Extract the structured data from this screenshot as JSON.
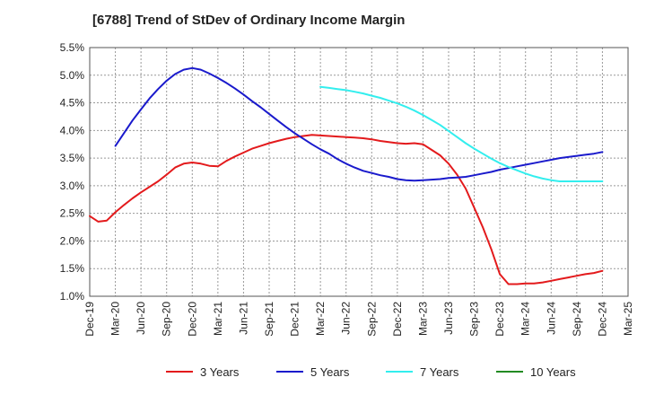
{
  "chart_data": {
    "type": "line",
    "title": "[6788]  Trend of StDev of Ordinary Income Margin",
    "xlabel": "",
    "ylabel": "",
    "x_tick_labels": [
      "Dec-19",
      "Mar-20",
      "Jun-20",
      "Sep-20",
      "Dec-20",
      "Mar-21",
      "Jun-21",
      "Sep-21",
      "Dec-21",
      "Mar-22",
      "Jun-22",
      "Sep-22",
      "Dec-22",
      "Mar-23",
      "Jun-23",
      "Sep-23",
      "Dec-23",
      "Mar-24",
      "Jun-24",
      "Sep-24",
      "Dec-24",
      "Mar-25"
    ],
    "y_tick_labels": [
      "1.0%",
      "1.5%",
      "2.0%",
      "2.5%",
      "3.0%",
      "3.5%",
      "4.0%",
      "4.5%",
      "5.0%",
      "5.5%"
    ],
    "ylim": [
      1.0,
      5.5
    ],
    "y_ticks": [
      1.0,
      1.5,
      2.0,
      2.5,
      3.0,
      3.5,
      4.0,
      4.5,
      5.0,
      5.5
    ],
    "grid": true,
    "legend_position": "bottom",
    "series": [
      {
        "name": "3 Years",
        "color": "#e31a1c",
        "points": [
          [
            "2019-12",
            2.45
          ],
          [
            "2020-01",
            2.35
          ],
          [
            "2020-02",
            2.37
          ],
          [
            "2020-03",
            2.52
          ],
          [
            "2020-04",
            2.65
          ],
          [
            "2020-05",
            2.77
          ],
          [
            "2020-06",
            2.88
          ],
          [
            "2020-07",
            2.98
          ],
          [
            "2020-08",
            3.08
          ],
          [
            "2020-09",
            3.2
          ],
          [
            "2020-10",
            3.33
          ],
          [
            "2020-11",
            3.4
          ],
          [
            "2020-12",
            3.42
          ],
          [
            "2021-01",
            3.4
          ],
          [
            "2021-02",
            3.36
          ],
          [
            "2021-03",
            3.35
          ],
          [
            "2021-04",
            3.45
          ],
          [
            "2021-05",
            3.53
          ],
          [
            "2021-06",
            3.6
          ],
          [
            "2021-07",
            3.67
          ],
          [
            "2021-08",
            3.72
          ],
          [
            "2021-09",
            3.77
          ],
          [
            "2021-10",
            3.81
          ],
          [
            "2021-11",
            3.85
          ],
          [
            "2021-12",
            3.88
          ],
          [
            "2022-01",
            3.9
          ],
          [
            "2022-02",
            3.92
          ],
          [
            "2022-03",
            3.91
          ],
          [
            "2022-04",
            3.9
          ],
          [
            "2022-05",
            3.89
          ],
          [
            "2022-06",
            3.88
          ],
          [
            "2022-07",
            3.87
          ],
          [
            "2022-08",
            3.86
          ],
          [
            "2022-09",
            3.84
          ],
          [
            "2022-10",
            3.81
          ],
          [
            "2022-11",
            3.79
          ],
          [
            "2022-12",
            3.77
          ],
          [
            "2023-01",
            3.76
          ],
          [
            "2023-02",
            3.77
          ],
          [
            "2023-03",
            3.75
          ],
          [
            "2023-04",
            3.65
          ],
          [
            "2023-05",
            3.55
          ],
          [
            "2023-06",
            3.4
          ],
          [
            "2023-07",
            3.2
          ],
          [
            "2023-08",
            2.95
          ],
          [
            "2023-09",
            2.6
          ],
          [
            "2023-10",
            2.25
          ],
          [
            "2023-11",
            1.85
          ],
          [
            "2023-12",
            1.4
          ],
          [
            "2024-01",
            1.22
          ],
          [
            "2024-02",
            1.22
          ],
          [
            "2024-03",
            1.23
          ],
          [
            "2024-04",
            1.23
          ],
          [
            "2024-05",
            1.25
          ],
          [
            "2024-06",
            1.28
          ],
          [
            "2024-07",
            1.31
          ],
          [
            "2024-08",
            1.34
          ],
          [
            "2024-09",
            1.37
          ],
          [
            "2024-10",
            1.4
          ],
          [
            "2024-11",
            1.42
          ],
          [
            "2024-12",
            1.46
          ]
        ]
      },
      {
        "name": "5 Years",
        "color": "#1a1acc",
        "points": [
          [
            "2020-03",
            3.72
          ],
          [
            "2020-04",
            3.95
          ],
          [
            "2020-05",
            4.18
          ],
          [
            "2020-06",
            4.38
          ],
          [
            "2020-07",
            4.58
          ],
          [
            "2020-08",
            4.75
          ],
          [
            "2020-09",
            4.9
          ],
          [
            "2020-10",
            5.02
          ],
          [
            "2020-11",
            5.1
          ],
          [
            "2020-12",
            5.13
          ],
          [
            "2021-01",
            5.1
          ],
          [
            "2021-02",
            5.03
          ],
          [
            "2021-03",
            4.95
          ],
          [
            "2021-04",
            4.86
          ],
          [
            "2021-05",
            4.76
          ],
          [
            "2021-06",
            4.65
          ],
          [
            "2021-07",
            4.53
          ],
          [
            "2021-08",
            4.42
          ],
          [
            "2021-09",
            4.3
          ],
          [
            "2021-10",
            4.18
          ],
          [
            "2021-11",
            4.06
          ],
          [
            "2021-12",
            3.95
          ],
          [
            "2022-01",
            3.85
          ],
          [
            "2022-02",
            3.75
          ],
          [
            "2022-03",
            3.66
          ],
          [
            "2022-04",
            3.58
          ],
          [
            "2022-05",
            3.48
          ],
          [
            "2022-06",
            3.4
          ],
          [
            "2022-07",
            3.33
          ],
          [
            "2022-08",
            3.27
          ],
          [
            "2022-09",
            3.23
          ],
          [
            "2022-10",
            3.19
          ],
          [
            "2022-11",
            3.16
          ],
          [
            "2022-12",
            3.12
          ],
          [
            "2023-01",
            3.1
          ],
          [
            "2023-02",
            3.09
          ],
          [
            "2023-03",
            3.1
          ],
          [
            "2023-04",
            3.11
          ],
          [
            "2023-05",
            3.12
          ],
          [
            "2023-06",
            3.14
          ],
          [
            "2023-07",
            3.15
          ],
          [
            "2023-08",
            3.16
          ],
          [
            "2023-09",
            3.19
          ],
          [
            "2023-10",
            3.22
          ],
          [
            "2023-11",
            3.25
          ],
          [
            "2023-12",
            3.29
          ],
          [
            "2024-01",
            3.32
          ],
          [
            "2024-02",
            3.35
          ],
          [
            "2024-03",
            3.38
          ],
          [
            "2024-04",
            3.41
          ],
          [
            "2024-05",
            3.44
          ],
          [
            "2024-06",
            3.47
          ],
          [
            "2024-07",
            3.5
          ],
          [
            "2024-08",
            3.52
          ],
          [
            "2024-09",
            3.54
          ],
          [
            "2024-10",
            3.56
          ],
          [
            "2024-11",
            3.58
          ],
          [
            "2024-12",
            3.61
          ]
        ]
      },
      {
        "name": "7 Years",
        "color": "#33eeee",
        "points": [
          [
            "2022-03",
            4.79
          ],
          [
            "2022-04",
            4.77
          ],
          [
            "2022-05",
            4.75
          ],
          [
            "2022-06",
            4.73
          ],
          [
            "2022-07",
            4.7
          ],
          [
            "2022-08",
            4.67
          ],
          [
            "2022-09",
            4.63
          ],
          [
            "2022-10",
            4.59
          ],
          [
            "2022-11",
            4.54
          ],
          [
            "2022-12",
            4.49
          ],
          [
            "2023-01",
            4.43
          ],
          [
            "2023-02",
            4.36
          ],
          [
            "2023-03",
            4.28
          ],
          [
            "2023-04",
            4.19
          ],
          [
            "2023-05",
            4.1
          ],
          [
            "2023-06",
            3.99
          ],
          [
            "2023-07",
            3.88
          ],
          [
            "2023-08",
            3.77
          ],
          [
            "2023-09",
            3.67
          ],
          [
            "2023-10",
            3.58
          ],
          [
            "2023-11",
            3.49
          ],
          [
            "2023-12",
            3.41
          ],
          [
            "2024-01",
            3.34
          ],
          [
            "2024-02",
            3.28
          ],
          [
            "2024-03",
            3.22
          ],
          [
            "2024-04",
            3.17
          ],
          [
            "2024-05",
            3.13
          ],
          [
            "2024-06",
            3.1
          ],
          [
            "2024-07",
            3.08
          ],
          [
            "2024-08",
            3.08
          ],
          [
            "2024-09",
            3.08
          ],
          [
            "2024-10",
            3.08
          ],
          [
            "2024-11",
            3.08
          ],
          [
            "2024-12",
            3.08
          ]
        ]
      },
      {
        "name": "10 Years",
        "color": "#228b22",
        "points": []
      }
    ]
  }
}
